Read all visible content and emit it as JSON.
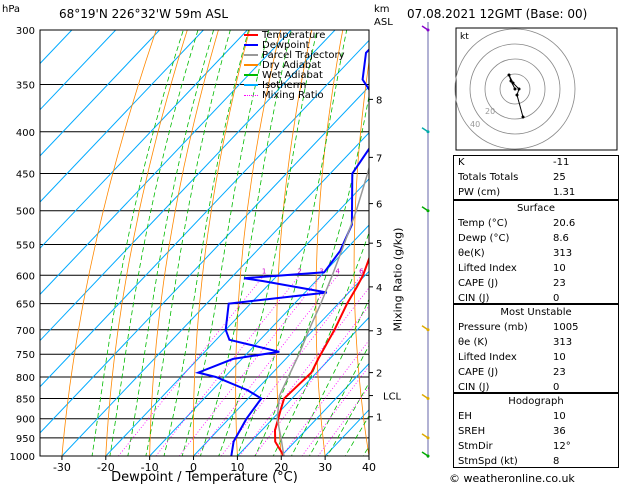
{
  "header": {
    "left": "68°19'N  226°32'W  59m  ASL",
    "hpa": "hPa",
    "km": "km",
    "asl": "ASL",
    "right": "07.08.2021  12GMT  (Base: 00)"
  },
  "legend": [
    {
      "label": "Temperature",
      "color": "#ff0000",
      "style": "solid"
    },
    {
      "label": "Dewpoint",
      "color": "#0000ff",
      "style": "solid"
    },
    {
      "label": "Parcel Trajectory",
      "color": "#999999",
      "style": "solid"
    },
    {
      "label": "Dry Adiabat",
      "color": "#ff8800",
      "style": "solid"
    },
    {
      "label": "Wet Adiabat",
      "color": "#00bb00",
      "style": "solid"
    },
    {
      "label": "Isotherm",
      "color": "#00aaff",
      "style": "solid"
    },
    {
      "label": "Mixing Ratio",
      "color": "#ff00ff",
      "style": "dotted"
    }
  ],
  "chart_data": {
    "type": "line",
    "xlabel": "Dewpoint / Temperature (°C)",
    "ylabel_right": "Mixing Ratio (g/kg)",
    "pressure_levels": [
      300,
      350,
      400,
      450,
      500,
      550,
      600,
      650,
      700,
      750,
      800,
      850,
      900,
      950,
      1000
    ],
    "x_ticks": [
      -30,
      -20,
      -10,
      0,
      10,
      20,
      30,
      40
    ],
    "xlim": [
      -35,
      40
    ],
    "skew": "skew-T",
    "km_ticks": [
      {
        "p": 365,
        "km": "8"
      },
      {
        "p": 430,
        "km": "7"
      },
      {
        "p": 490,
        "km": "6"
      },
      {
        "p": 548,
        "km": "5"
      },
      {
        "p": 620,
        "km": "4"
      },
      {
        "p": 702,
        "km": "3"
      },
      {
        "p": 790,
        "km": "2"
      },
      {
        "p": 895,
        "km": "1"
      }
    ],
    "lcl": {
      "p": 843,
      "label": "LCL"
    },
    "mixing_ratio_labels": [
      "1",
      "2",
      "3",
      "4",
      "6",
      "8",
      "10",
      "15",
      "20",
      "25"
    ],
    "series": [
      {
        "name": "Temperature",
        "color": "#ff0000",
        "points": [
          [
            1000,
            20.6
          ],
          [
            960,
            15.5
          ],
          [
            930,
            13.0
          ],
          [
            880,
            10.0
          ],
          [
            850,
            8.2
          ],
          [
            820,
            8.5
          ],
          [
            790,
            8.8
          ],
          [
            760,
            7.4
          ],
          [
            700,
            4.8
          ],
          [
            650,
            2.0
          ],
          [
            620,
            0.6
          ],
          [
            600,
            -0.5
          ],
          [
            550,
            -4.6
          ],
          [
            500,
            -9.0
          ],
          [
            450,
            -15.0
          ],
          [
            420,
            -19.5
          ],
          [
            400,
            -21.5
          ],
          [
            350,
            -29.0
          ],
          [
            300,
            -37.0
          ]
        ]
      },
      {
        "name": "Dewpoint",
        "color": "#0000ff",
        "points": [
          [
            1000,
            8.6
          ],
          [
            960,
            6.0
          ],
          [
            900,
            4.0
          ],
          [
            850,
            3.0
          ],
          [
            830,
            -2.0
          ],
          [
            800,
            -12.0
          ],
          [
            790,
            -17.0
          ],
          [
            760,
            -12.0
          ],
          [
            745,
            -3.0
          ],
          [
            720,
            -17.0
          ],
          [
            700,
            -20.0
          ],
          [
            650,
            -25.0
          ],
          [
            630,
            -5.0
          ],
          [
            610,
            -22.0
          ],
          [
            605,
            -27.0
          ],
          [
            595,
            -10.0
          ],
          [
            560,
            -11.0
          ],
          [
            520,
            -14.0
          ],
          [
            500,
            -17.0
          ],
          [
            450,
            -25.0
          ],
          [
            420,
            -26.5
          ],
          [
            400,
            -28.0
          ],
          [
            380,
            -31.0
          ],
          [
            360,
            -37.5
          ],
          [
            345,
            -43.0
          ],
          [
            320,
            -48.0
          ],
          [
            300,
            -48.0
          ]
        ]
      },
      {
        "name": "Parcel Trajectory",
        "color": "#999999",
        "points": [
          [
            1000,
            20.6
          ],
          [
            950,
            16.0
          ],
          [
            900,
            11.0
          ],
          [
            843,
            6.5
          ],
          [
            800,
            4.5
          ],
          [
            750,
            2.0
          ],
          [
            700,
            -1.0
          ],
          [
            650,
            -4.0
          ],
          [
            600,
            -7.5
          ],
          [
            550,
            -11.5
          ],
          [
            500,
            -16.0
          ],
          [
            450,
            -21.5
          ],
          [
            400,
            -28.0
          ],
          [
            350,
            -36.0
          ],
          [
            300,
            -45.0
          ]
        ]
      }
    ]
  },
  "hodograph": {
    "label": "kt",
    "ring_labels": [
      "20",
      "40"
    ]
  },
  "indices": {
    "rows": [
      {
        "k": "K",
        "v": "-11"
      },
      {
        "k": "Totals Totals",
        "v": "25"
      },
      {
        "k": "PW (cm)",
        "v": "1.31"
      }
    ]
  },
  "surface": {
    "title": "Surface",
    "rows": [
      {
        "k": "Temp (°C)",
        "v": "20.6"
      },
      {
        "k": "Dewp (°C)",
        "v": "8.6"
      },
      {
        "k": "θe(K)",
        "v": "313"
      },
      {
        "k": "Lifted Index",
        "v": "10"
      },
      {
        "k": "CAPE (J)",
        "v": "23"
      },
      {
        "k": "CIN (J)",
        "v": "0"
      }
    ]
  },
  "most_unstable": {
    "title": "Most Unstable",
    "rows": [
      {
        "k": "Pressure (mb)",
        "v": "1005"
      },
      {
        "k": "θe (K)",
        "v": "313"
      },
      {
        "k": "Lifted Index",
        "v": "10"
      },
      {
        "k": "CAPE (J)",
        "v": "23"
      },
      {
        "k": "CIN (J)",
        "v": "0"
      }
    ]
  },
  "hodograph_table": {
    "title": "Hodograph",
    "rows": [
      {
        "k": "EH",
        "v": "10"
      },
      {
        "k": "SREH",
        "v": "36"
      },
      {
        "k": "StmDir",
        "v": "12°"
      },
      {
        "k": "StmSpd (kt)",
        "v": "8"
      }
    ]
  },
  "footer": {
    "credit": "© weatheronline.co.uk"
  }
}
